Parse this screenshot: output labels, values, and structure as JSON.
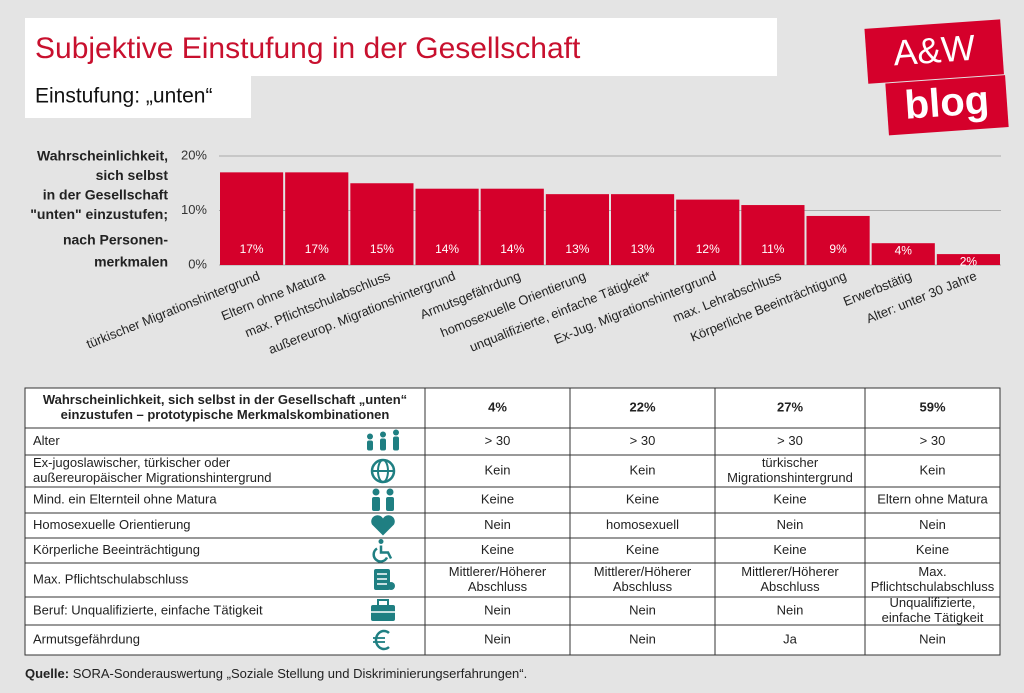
{
  "header": {
    "title": "Subjektive Einstufung in der Gesellschaft",
    "subtitle": "Einstufung: „unten“"
  },
  "logo": {
    "line1": "A&W",
    "line2": "blog"
  },
  "chart_data": {
    "type": "bar",
    "ylabel": [
      "Wahrscheinlichkeit,",
      "sich selbst",
      "in der Gesellschaft",
      "\"unten\" einzustufen;",
      "nach Personen-",
      "merkmalen"
    ],
    "categories": [
      "türkischer Migrationshintergrund",
      "Eltern ohne Matura",
      "max. Pflichtschulabschluss",
      "außereurop. Migrationshintergrund",
      "Armutsgefährdung",
      "homosexuelle Orientierung",
      "unqualifizierte, einfache Tätigkeit*",
      "Ex-Jug. Migrationshintergrund",
      "max. Lehrabschluss",
      "Körperliche Beeinträchtigung",
      "Erwerbstätig",
      "Alter: unter 30 Jahre"
    ],
    "values": [
      17,
      17,
      15,
      14,
      14,
      13,
      13,
      12,
      11,
      9,
      4,
      2
    ],
    "value_labels": [
      "17%",
      "17%",
      "15%",
      "14%",
      "14%",
      "13%",
      "13%",
      "12%",
      "11%",
      "9%",
      "4%",
      "2%"
    ],
    "color": "#d5002b",
    "ylim": [
      0,
      20
    ],
    "yticks": [
      {
        "value": 0,
        "label": "0%"
      },
      {
        "value": 10,
        "label": "10%"
      },
      {
        "value": 20,
        "label": "20%"
      }
    ],
    "grid": true
  },
  "table": {
    "header": {
      "label": [
        "Wahrscheinlichkeit, sich selbst in der Gesellschaft „unten“",
        "einzustufen – prototypische Merkmalskombinationen"
      ],
      "cells": [
        "4%",
        "22%",
        "27%",
        "59%"
      ]
    },
    "rows": [
      {
        "label": [
          "Alter"
        ],
        "cells": [
          "> 30",
          "> 30",
          "> 30",
          "> 30"
        ]
      },
      {
        "label": [
          "Ex-jugoslawischer, türkischer oder",
          "außereuropäischer Migrationshintergrund"
        ],
        "cells": [
          "Kein",
          "Kein",
          [
            "türkischer",
            "Migrationshintergrund"
          ],
          "Kein"
        ]
      },
      {
        "label": [
          "Mind. ein Elternteil ohne Matura"
        ],
        "cells": [
          "Keine",
          "Keine",
          "Keine",
          "Eltern ohne Matura"
        ]
      },
      {
        "label": [
          "Homosexuelle Orientierung"
        ],
        "cells": [
          "Nein",
          "homosexuell",
          "Nein",
          "Nein"
        ]
      },
      {
        "label": [
          "Körperliche Beeinträchtigung"
        ],
        "cells": [
          "Keine",
          "Keine",
          "Keine",
          "Keine"
        ]
      },
      {
        "label": [
          "Max. Pflichtschulabschluss"
        ],
        "cells": [
          [
            "Mittlerer/Höherer",
            "Abschluss"
          ],
          [
            "Mittlerer/Höherer",
            "Abschluss"
          ],
          [
            "Mittlerer/Höherer",
            "Abschluss"
          ],
          [
            "Max.",
            "Pflichtschulabschluss"
          ]
        ]
      },
      {
        "label": [
          "Beruf: Unqualifizierte, einfache Tätigkeit"
        ],
        "cells": [
          "Nein",
          "Nein",
          "Nein",
          [
            "Unqualifizierte,",
            "einfache Tätigkeit"
          ]
        ]
      },
      {
        "label": [
          "Armutsgefährdung"
        ],
        "cells": [
          "Nein",
          "Nein",
          "Ja",
          "Nein"
        ]
      }
    ]
  },
  "source": {
    "label": "Quelle:",
    "text": "SORA-Sonderauswertung „Soziale Stellung und Diskriminierungserfahrungen“."
  }
}
